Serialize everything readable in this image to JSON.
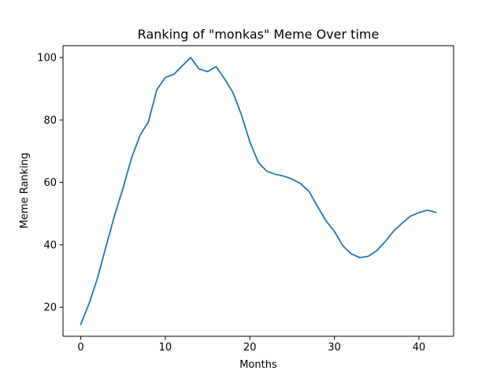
{
  "chart_data": {
    "type": "line",
    "title": "Ranking of \"monkas\" Meme Over time",
    "xlabel": "Months",
    "ylabel": "Meme Ranking",
    "xlim": [
      -2.1,
      44.1
    ],
    "ylim": [
      10.7,
      103.8
    ],
    "x_ticks": [
      0,
      10,
      20,
      30,
      40
    ],
    "y_ticks": [
      20,
      40,
      60,
      80,
      100
    ],
    "grid": false,
    "series": [
      {
        "color": "#1f77b4",
        "x": [
          0,
          1,
          2,
          3,
          4,
          5,
          6,
          7,
          8,
          9,
          10,
          11,
          12,
          13,
          14,
          15,
          16,
          17,
          18,
          19,
          20,
          21,
          22,
          23,
          24,
          25,
          26,
          27,
          28,
          29,
          30,
          31,
          32,
          33,
          34,
          35,
          36,
          37,
          38,
          39,
          40,
          41,
          42
        ],
        "values": [
          14.5,
          21.3,
          29.5,
          39.6,
          49.4,
          58.1,
          67.8,
          75.0,
          79.4,
          89.7,
          93.6,
          94.6,
          97.3,
          100.0,
          96.3,
          95.5,
          97.1,
          93.2,
          88.8,
          81.7,
          73.0,
          66.4,
          63.6,
          62.6,
          62.0,
          61.1,
          59.6,
          57.1,
          52.3,
          47.7,
          44.3,
          39.7,
          37.1,
          35.9,
          36.3,
          38.1,
          41.0,
          44.4,
          46.9,
          49.2,
          50.3,
          51.1,
          50.4
        ]
      }
    ]
  }
}
